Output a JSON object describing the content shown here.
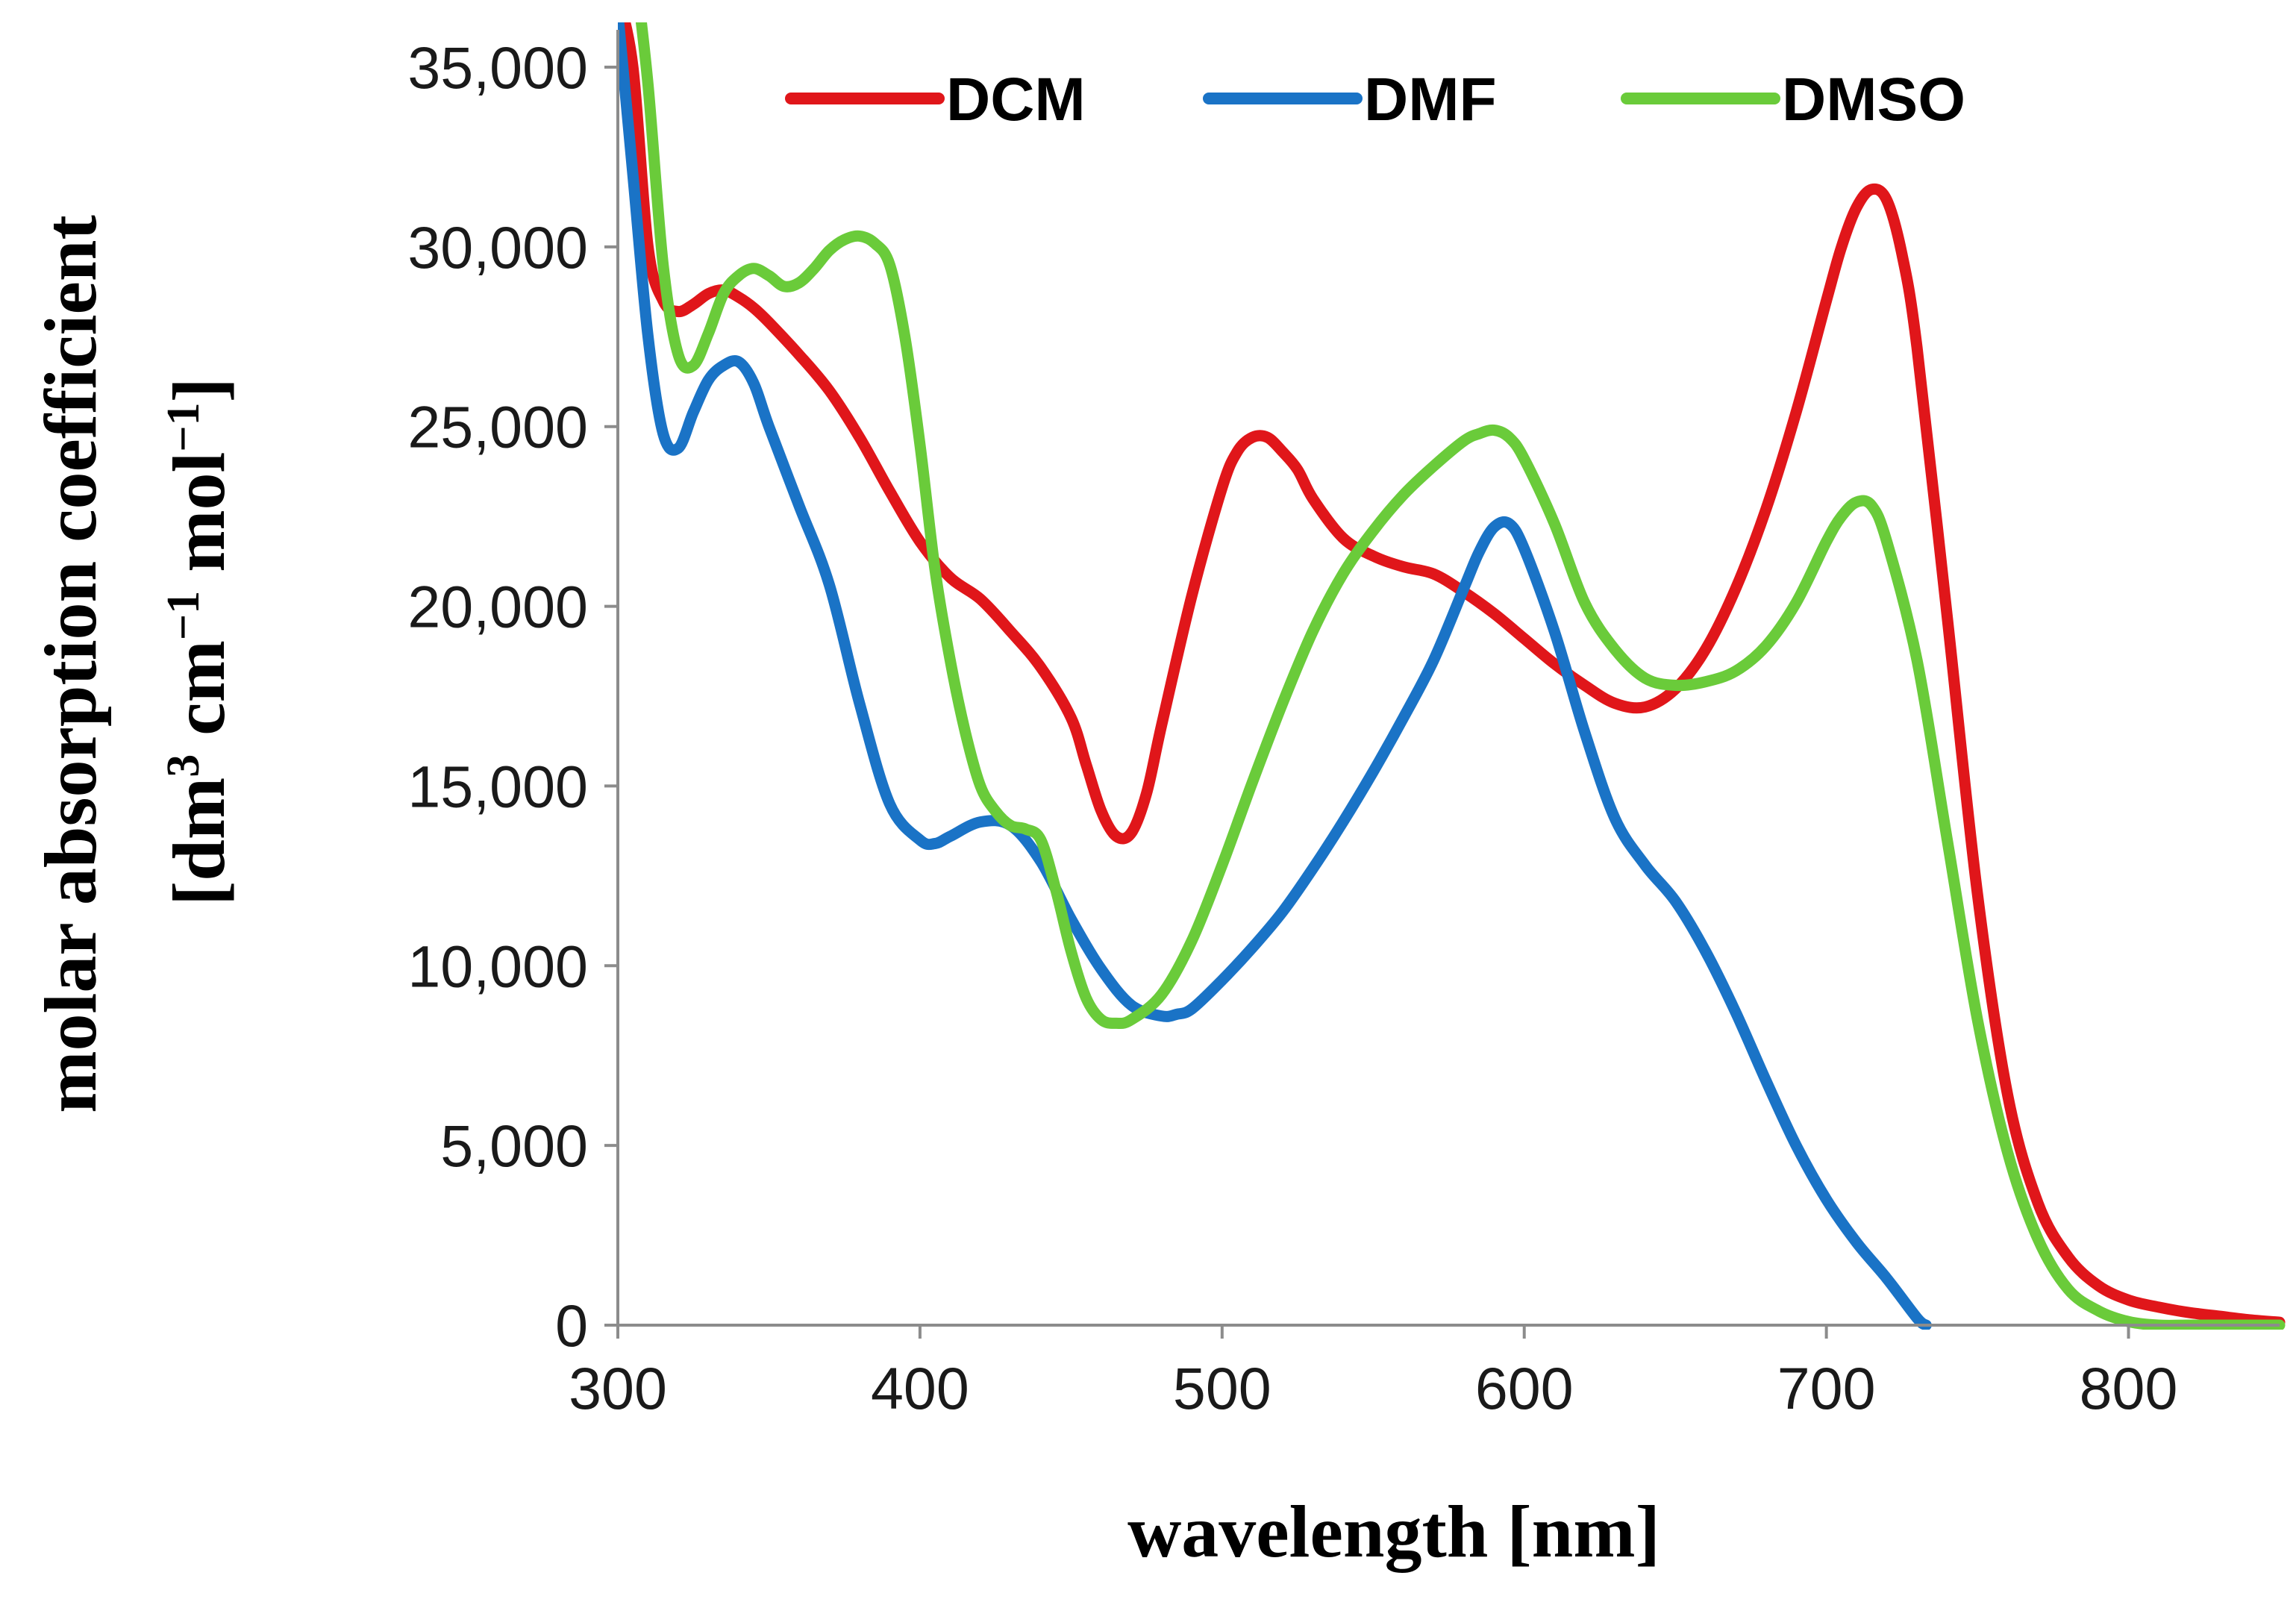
{
  "chart_data": {
    "type": "line",
    "title": "",
    "xlabel": "wavelength [nm]",
    "ylabel": {
      "line1": "molar absorption coefficient",
      "line2_parts": [
        "[dm",
        "3",
        " cm",
        "−1",
        " mol",
        "−1",
        "]"
      ]
    },
    "xlim": [
      300,
      850
    ],
    "ylim": [
      0,
      35000
    ],
    "x_ticks": [
      300,
      400,
      500,
      600,
      700,
      800
    ],
    "x_tick_labels": [
      "300",
      "400",
      "500",
      "600",
      "700",
      "800"
    ],
    "y_ticks": [
      0,
      5000,
      10000,
      15000,
      20000,
      25000,
      30000,
      35000
    ],
    "y_tick_labels": [
      "0",
      "5,000",
      "10,000",
      "15,000",
      "20,000",
      "25,000",
      "30,000",
      "35,000"
    ],
    "grid": false,
    "legend_position": "top",
    "series": [
      {
        "name": "DCM",
        "color": "#e0161a",
        "x": [
          300,
          305,
          310,
          315,
          320,
          325,
          330,
          335,
          340,
          345,
          350,
          360,
          370,
          380,
          390,
          400,
          410,
          420,
          430,
          440,
          450,
          455,
          460,
          465,
          470,
          475,
          480,
          490,
          500,
          505,
          510,
          515,
          520,
          525,
          530,
          540,
          550,
          560,
          570,
          580,
          590,
          600,
          610,
          620,
          630,
          640,
          650,
          660,
          670,
          680,
          690,
          700,
          705,
          710,
          715,
          720,
          725,
          730,
          740,
          750,
          760,
          770,
          780,
          790,
          800,
          810,
          820,
          830,
          840,
          850
        ],
        "y": [
          37000,
          35000,
          30000,
          28500,
          28200,
          28400,
          28700,
          28800,
          28600,
          28300,
          27900,
          27000,
          26000,
          24700,
          23200,
          21800,
          20800,
          20200,
          19300,
          18300,
          16900,
          15600,
          14300,
          13600,
          13700,
          14800,
          16700,
          20300,
          23300,
          24300,
          24700,
          24700,
          24300,
          23800,
          23000,
          21900,
          21400,
          21100,
          20900,
          20400,
          19800,
          19100,
          18400,
          17800,
          17300,
          17200,
          17700,
          18800,
          20500,
          22700,
          25400,
          28500,
          30000,
          31100,
          31600,
          31300,
          29800,
          27200,
          19700,
          12000,
          6400,
          3400,
          1900,
          1100,
          700,
          500,
          350,
          250,
          150,
          80
        ]
      },
      {
        "name": "DMF",
        "color": "#1a73c6",
        "x": [
          300,
          305,
          310,
          315,
          320,
          325,
          330,
          335,
          340,
          345,
          350,
          360,
          370,
          380,
          390,
          400,
          405,
          410,
          420,
          430,
          440,
          450,
          460,
          470,
          480,
          485,
          490,
          500,
          510,
          520,
          530,
          540,
          550,
          560,
          570,
          580,
          585,
          590,
          595,
          600,
          610,
          620,
          630,
          640,
          650,
          660,
          670,
          680,
          690,
          700,
          710,
          720,
          730,
          733
        ],
        "y": [
          36500,
          32000,
          27500,
          24800,
          24400,
          25400,
          26300,
          26700,
          26800,
          26200,
          25000,
          22800,
          20600,
          17300,
          14500,
          13500,
          13400,
          13600,
          14000,
          13900,
          12900,
          11300,
          9900,
          8900,
          8600,
          8650,
          8800,
          9600,
          10500,
          11500,
          12700,
          14000,
          15400,
          16900,
          18500,
          20500,
          21500,
          22200,
          22300,
          21600,
          19300,
          16500,
          14100,
          12800,
          11800,
          10400,
          8700,
          6800,
          5000,
          3500,
          2300,
          1300,
          200,
          0
        ]
      },
      {
        "name": "DMSO",
        "color": "#6acb3a",
        "x": [
          306,
          310,
          315,
          320,
          325,
          330,
          335,
          340,
          345,
          350,
          355,
          360,
          365,
          370,
          375,
          380,
          385,
          390,
          395,
          400,
          405,
          410,
          415,
          420,
          425,
          430,
          435,
          440,
          445,
          450,
          455,
          460,
          465,
          470,
          480,
          490,
          500,
          510,
          520,
          530,
          540,
          550,
          560,
          570,
          580,
          585,
          590,
          595,
          600,
          610,
          620,
          630,
          640,
          650,
          660,
          670,
          680,
          690,
          700,
          705,
          710,
          715,
          720,
          730,
          740,
          750,
          760,
          770,
          780,
          790,
          800,
          810,
          820,
          830,
          840,
          850
        ],
        "y": [
          37500,
          34500,
          29500,
          27000,
          26700,
          27600,
          28700,
          29200,
          29400,
          29200,
          28900,
          29000,
          29400,
          29900,
          30200,
          30300,
          30100,
          29500,
          27500,
          24500,
          21000,
          18500,
          16500,
          15000,
          14300,
          13900,
          13800,
          13500,
          12100,
          10400,
          9100,
          8500,
          8400,
          8500,
          9200,
          10700,
          12800,
          15100,
          17300,
          19300,
          20900,
          22100,
          23100,
          23900,
          24600,
          24800,
          24900,
          24700,
          24100,
          22300,
          20100,
          18800,
          18000,
          17800,
          17900,
          18200,
          18900,
          20100,
          21800,
          22500,
          22900,
          22800,
          21800,
          18500,
          13500,
          8500,
          4800,
          2400,
          1000,
          400,
          100,
          0,
          0,
          0,
          0,
          0
        ]
      }
    ]
  }
}
